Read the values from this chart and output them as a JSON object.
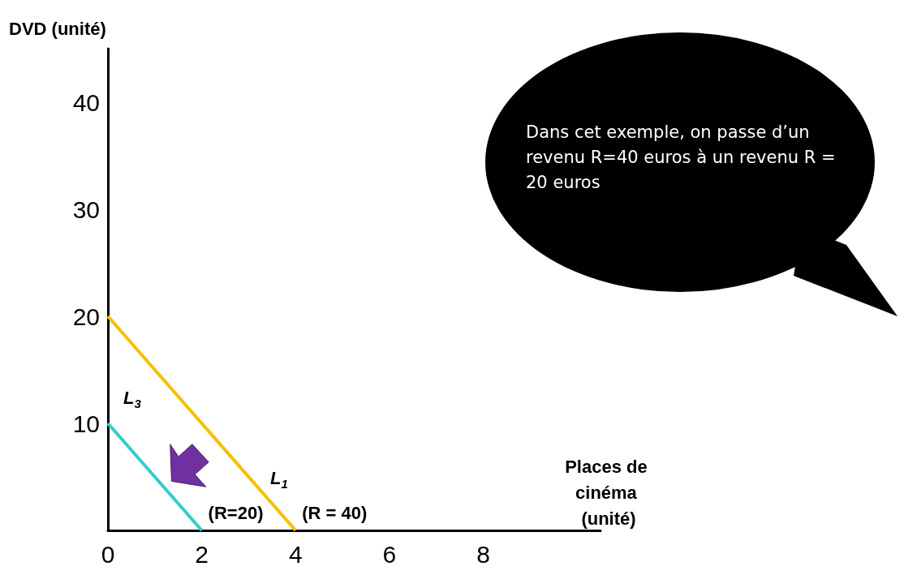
{
  "chart_data": {
    "type": "line",
    "xlabel": "Places de cinéma (unité)",
    "ylabel": "DVD (unité)",
    "xlim": [
      0,
      10.5
    ],
    "ylim": [
      0,
      45
    ],
    "xticks": [
      0,
      2,
      4,
      6,
      8
    ],
    "yticks": [
      10,
      20,
      30,
      40
    ],
    "grid": false,
    "series": [
      {
        "name": "L$_{3}$",
        "color": "#33cccc",
        "x": [
          0,
          2
        ],
        "values": [
          10,
          0
        ]
      },
      {
        "name": "L$_{1}$",
        "color": "#f5c000",
        "x": [
          0,
          4
        ],
        "values": [
          20,
          0
        ]
      }
    ],
    "annotations": [
      "(R=20)",
      "(R = 40)",
      "Dans cet exemple, on passe d’un revenu R=40 euros à un revenu R = 20 euros"
    ]
  }
}
